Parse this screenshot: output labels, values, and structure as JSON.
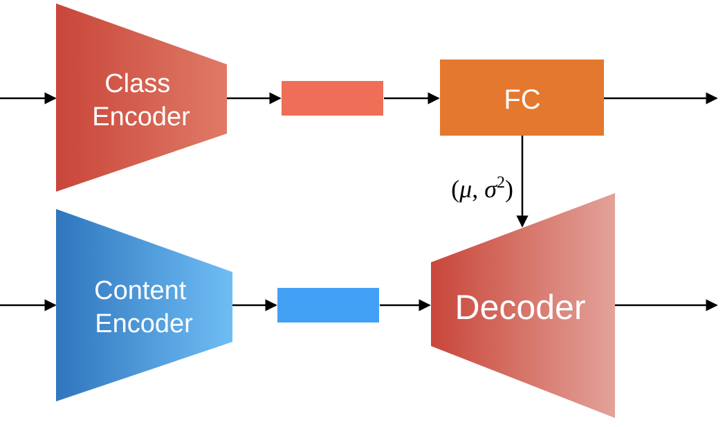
{
  "blocks": {
    "class_encoder": {
      "line1": "Class",
      "line2": "Encoder"
    },
    "content_encoder": {
      "line1": "Content",
      "line2": "Encoder"
    },
    "fc": {
      "label": "FC"
    },
    "decoder": {
      "label": "Decoder"
    }
  },
  "fc_output_label": {
    "open_paren": "(",
    "mu": "μ",
    "comma": ", ",
    "sigma": "σ",
    "exponent": "2",
    "close_paren": ")"
  },
  "colors": {
    "class_encoder_from": "#c9463a",
    "class_encoder_to": "#df7a66",
    "class_code": "#ee6e58",
    "fc": "#e5782f",
    "content_encoder_from": "#2f76bd",
    "content_encoder_to": "#6fbdf5",
    "content_code": "#42a0f5",
    "decoder_from": "#c9463a",
    "decoder_to": "#e3a299",
    "arrow": "#000000"
  }
}
